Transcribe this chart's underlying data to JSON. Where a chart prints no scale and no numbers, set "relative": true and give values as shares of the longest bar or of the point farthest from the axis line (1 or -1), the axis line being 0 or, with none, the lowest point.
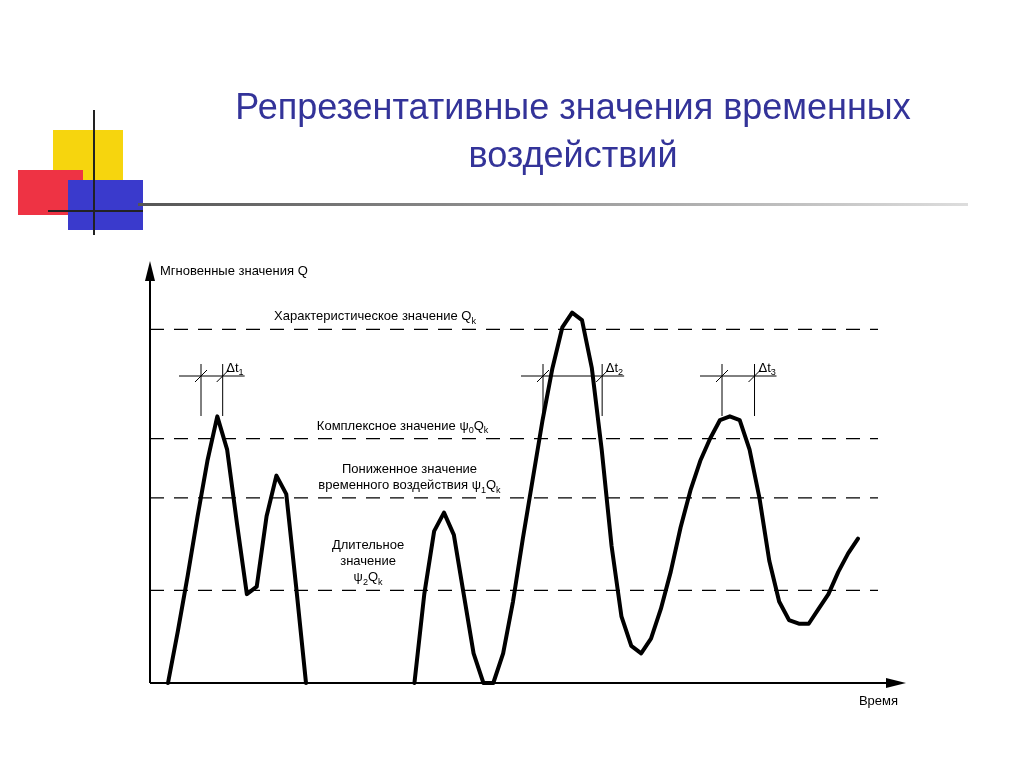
{
  "chart_data": {
    "type": "line",
    "title": "Репрезентативные значения временных воздействий",
    "ylabel": "Мгновенные значения Q",
    "xlabel": "Время",
    "relative": true,
    "legend": false,
    "line_style": "solid",
    "categories": [
      null,
      null,
      null,
      null,
      null,
      null,
      null,
      null,
      null,
      null,
      null,
      null,
      null,
      null,
      null,
      null,
      null,
      null,
      null,
      null,
      null,
      null,
      null,
      null,
      null,
      null,
      null,
      null,
      null,
      null,
      null,
      null,
      null,
      null,
      null,
      null,
      null,
      null,
      null,
      null,
      null,
      null,
      null,
      null,
      null,
      null,
      null,
      null,
      null,
      null,
      null,
      null,
      null,
      null,
      null,
      null,
      null,
      null,
      null,
      null,
      null,
      null,
      null,
      null,
      null,
      null,
      null,
      null,
      null,
      null,
      null
    ],
    "series": [
      {
        "color": "#000000",
        "values": [
          0,
          0.14,
          0.29,
          0.45,
          0.6,
          0.72,
          0.63,
          0.43,
          0.24,
          0.26,
          0.45,
          0.56,
          0.51,
          0.26,
          0,
          null,
          null,
          null,
          null,
          null,
          null,
          null,
          null,
          null,
          null,
          null,
          null,
          null,
          null,
          null,
          null,
          null,
          null,
          null,
          null,
          null,
          null,
          null,
          null,
          null,
          null,
          null,
          null,
          null,
          null,
          null,
          null,
          null,
          null,
          null,
          null,
          null,
          null,
          null,
          null,
          null,
          null,
          null,
          null,
          null,
          null,
          null,
          null,
          null,
          null,
          null,
          null,
          null,
          null,
          null,
          null
        ]
      },
      {
        "color": "#000000",
        "values": [
          null,
          null,
          null,
          null,
          null,
          null,
          null,
          null,
          null,
          null,
          null,
          null,
          null,
          null,
          null,
          null,
          null,
          null,
          null,
          null,
          null,
          null,
          null,
          null,
          null,
          0,
          0.24,
          0.41,
          0.46,
          0.4,
          0.24,
          0.08,
          0,
          0,
          0.08,
          0.22,
          0.39,
          0.55,
          0.71,
          0.85,
          0.96,
          1,
          0.98,
          0.85,
          0.63,
          0.37,
          0.18,
          0.1,
          0.08,
          0.12,
          0.2,
          0.3,
          0.42,
          0.52,
          0.6,
          0.66,
          0.71,
          0.72,
          0.71,
          0.63,
          0.5,
          0.33,
          0.22,
          0.17,
          0.16,
          0.16,
          0.2,
          0.24,
          0.3,
          0.35,
          0.39
        ]
      }
    ],
    "ref_lines": [
      {
        "axis": "y",
        "value": 0.955,
        "label": "Характеристическое значение Q$_{k}$",
        "line_style": "dashed",
        "color": "#000000"
      },
      {
        "axis": "y",
        "value": 0.66,
        "label": "Комплексное значение ψ$_{0}$Q$_{k}$",
        "line_style": "dashed",
        "color": "#000000"
      },
      {
        "axis": "y",
        "value": 0.5,
        "label": "Пониженное значение временного воздействия ψ$_{1}$Q$_{k}$",
        "line_style": "dashed",
        "color": "#000000"
      },
      {
        "axis": "y",
        "value": 0.25,
        "label": "Длительное значение ψ$_{2}$Q$_{k}$",
        "line_style": "dashed",
        "color": "#000000"
      }
    ],
    "annotations": [
      "Δt$_{1}$",
      "Δt$_{2}$",
      "Δt$_{3}$"
    ]
  }
}
